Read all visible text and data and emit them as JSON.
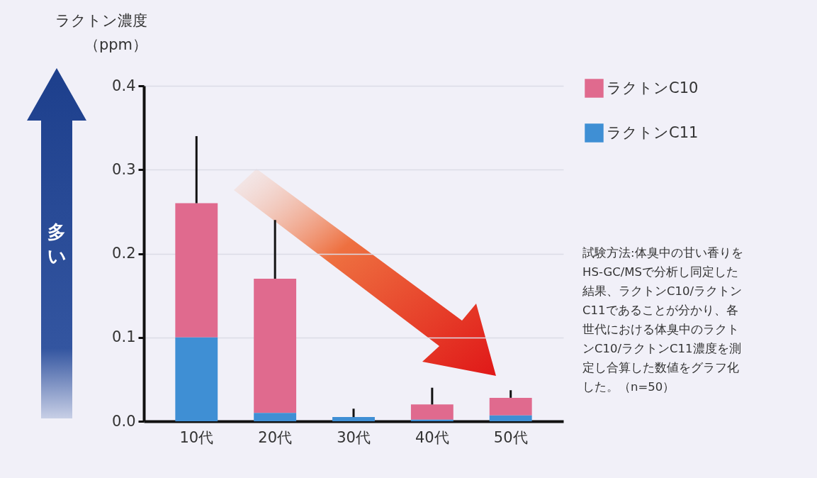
{
  "chart_data": {
    "type": "bar",
    "stacked": true,
    "ylabel": "ラクトン濃度（ppm）",
    "categories": [
      "10代",
      "20代",
      "30代",
      "40代",
      "50代"
    ],
    "series": [
      {
        "name": "ラクトンC11",
        "color": "#3f8fd4",
        "values": [
          0.1,
          0.01,
          0.005,
          0.002,
          0.007
        ]
      },
      {
        "name": "ラクトンC10",
        "color": "#e06a8e",
        "values": [
          0.16,
          0.16,
          0,
          0.018,
          0.021
        ],
        "errors": [
          [
            0.26,
            0.34
          ],
          [
            0.17,
            0.24
          ],
          [
            0.005,
            0.015
          ],
          [
            0.02,
            0.04
          ],
          [
            0.028,
            0.037
          ]
        ]
      }
    ],
    "ylim": [
      0,
      0.4
    ],
    "yticks": [
      {
        "value": 0,
        "label": "0.0"
      },
      0.1,
      0.2,
      0.3,
      0.4
    ],
    "grid": "y",
    "legend": "top right",
    "annotations": [
      "多い",
      "試験方法:体臭中の甘い香りをHS-GC/MSで分析し同定した結果、ラクトンC10/ラクトンC11であることが分かり、各世代における体臭中のラクトンC10/ラクトンC11濃度を測定し合算した数値をグラフ化した。（n=50）"
    ]
  }
}
